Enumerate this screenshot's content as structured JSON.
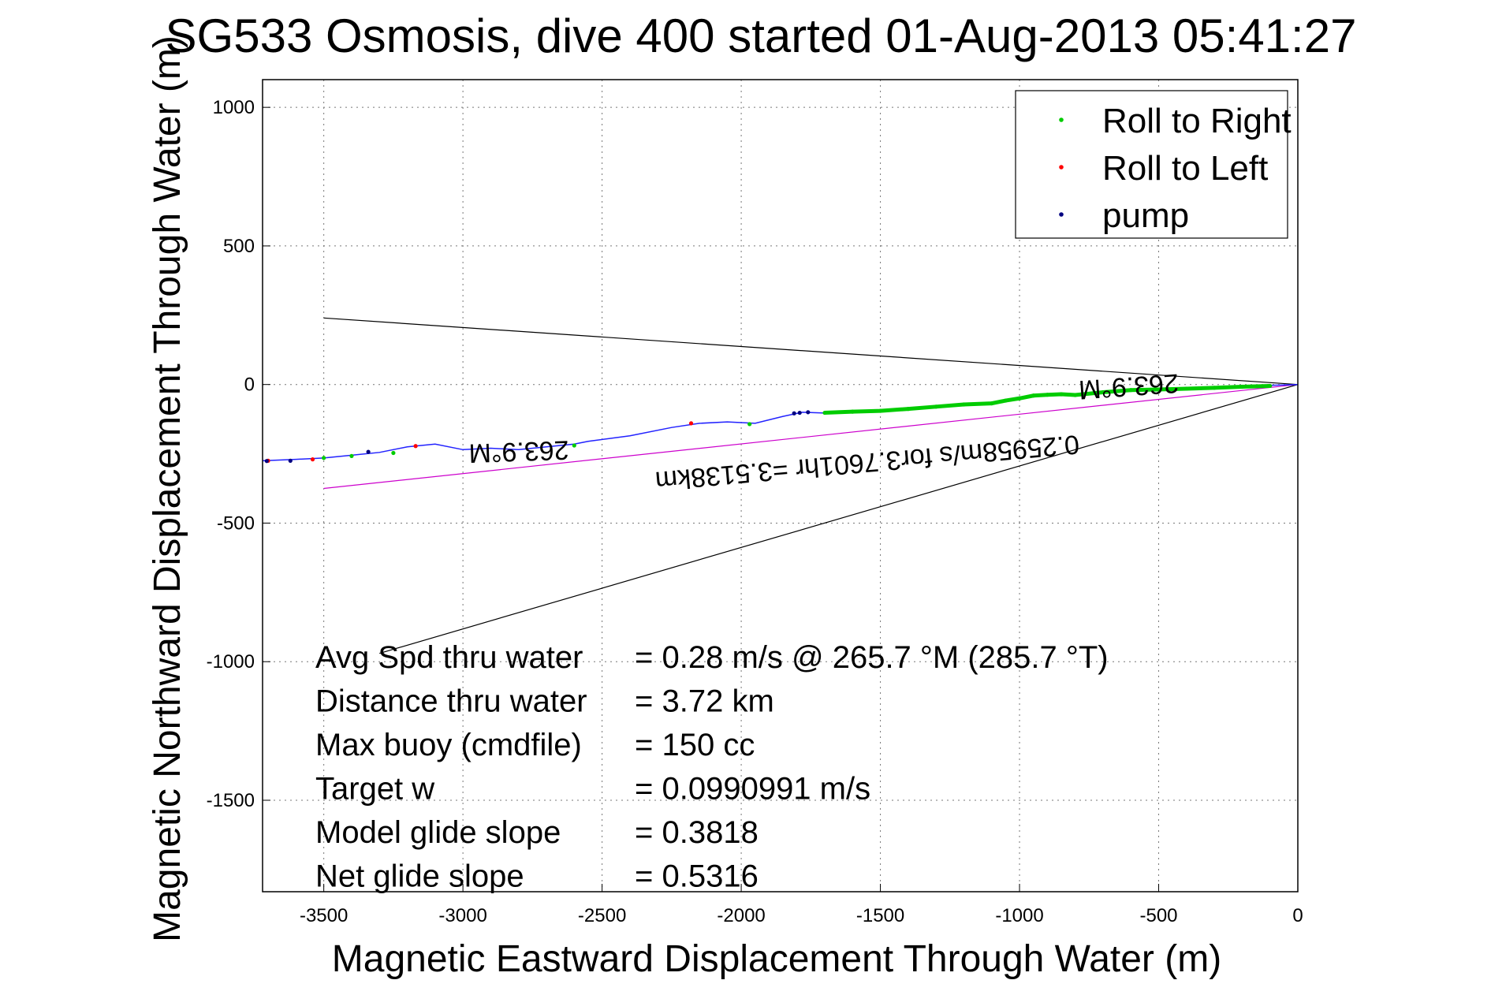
{
  "chart_data": {
    "type": "line",
    "title": "SG533 Osmosis, dive 400 started 01-Aug-2013 05:41:27",
    "xlabel": "Magnetic Eastward Displacement Through Water (m)",
    "ylabel": "Magnetic Northward Displacement Through Water (m)",
    "xlim": [
      -3720,
      0
    ],
    "ylim": [
      -1830,
      1100
    ],
    "xticks": [
      -3500,
      -3000,
      -2500,
      -2000,
      -1500,
      -1000,
      -500,
      0
    ],
    "yticks": [
      1000,
      500,
      0,
      -500,
      -1000,
      -1500
    ],
    "grid": true,
    "legend_position": "top-right",
    "legend": [
      {
        "label": "Roll to Right",
        "color": "#00cc00"
      },
      {
        "label": "Roll to Left",
        "color": "#ff0000"
      },
      {
        "label": "pump",
        "color": "#000080"
      }
    ],
    "series": [
      {
        "type": "track",
        "color": "#2222ff",
        "x": [
          0,
          -100,
          -300,
          -500,
          -700,
          -800,
          -900,
          -1000,
          -1100,
          -1200,
          -1400,
          -1600,
          -1700,
          -1780,
          -1850,
          -1950,
          -2050,
          -2150,
          -2250,
          -2400,
          -2550,
          -2600,
          -2700,
          -2800,
          -2900,
          -3000,
          -3100,
          -3200,
          -3300,
          -3400,
          -3500,
          -3600,
          -3720
        ],
        "y": [
          0,
          -3,
          -12,
          -18,
          -30,
          -40,
          -35,
          -45,
          -65,
          -72,
          -88,
          -100,
          -103,
          -100,
          -115,
          -140,
          -135,
          -140,
          -155,
          -185,
          -205,
          -215,
          -225,
          -235,
          -230,
          -235,
          -215,
          -225,
          -245,
          -255,
          -265,
          -270,
          -275
        ]
      },
      {
        "name": "Roll to Right",
        "color": "#00cc00",
        "x": [
          -100,
          -200,
          -300,
          -400,
          -500,
          -600,
          -700,
          -800,
          -850,
          -900,
          -950,
          -1000,
          -1050,
          -1100,
          -1200,
          -1300,
          -1400,
          -1500,
          -1600,
          -1700,
          -1970,
          -2600,
          -3250,
          -3400,
          -3500
        ],
        "y": [
          -5,
          -8,
          -12,
          -15,
          -18,
          -20,
          -28,
          -38,
          -35,
          -37,
          -40,
          -50,
          -58,
          -68,
          -72,
          -80,
          -88,
          -95,
          -98,
          -102,
          -143,
          -220,
          -247,
          -258,
          -265
        ]
      },
      {
        "name": "Roll to Left",
        "color": "#ff0000",
        "x": [
          -2180,
          -3170,
          -3540,
          -3700
        ],
        "y": [
          -140,
          -222,
          -270,
          -275
        ]
      },
      {
        "name": "pump",
        "color": "#000080",
        "x": [
          -1760,
          -1790,
          -1810,
          -3340,
          -3620,
          -3705
        ],
        "y": [
          -100,
          -102,
          -104,
          -243,
          -275,
          -276
        ]
      }
    ],
    "reference_lines": [
      {
        "color": "#000000",
        "x": [
          0,
          -3500
        ],
        "y": [
          0,
          240
        ]
      },
      {
        "color": "#000000",
        "x": [
          0,
          -3300
        ],
        "y": [
          0,
          -970
        ]
      },
      {
        "color": "#cc00cc",
        "x": [
          0,
          -3500
        ],
        "y": [
          0,
          -375
        ]
      }
    ],
    "annotations": [
      {
        "text": "263.9°M",
        "x": -2800,
        "y": -210,
        "rotation": 178
      },
      {
        "text": "263.9°M",
        "x": -610,
        "y": 25,
        "rotation": 176
      },
      {
        "text": "0.25958m/s for3.7601hr =3.5138km",
        "x": -1550,
        "y": -250,
        "rotation": 175
      }
    ],
    "stats": [
      {
        "label": "Avg Spd thru water",
        "value": "=  0.28 m/s @ 265.7 °M (285.7 °T)"
      },
      {
        "label": "Distance thru water",
        "value": "=  3.72 km"
      },
      {
        "label": "Max buoy (cmdfile)",
        "value": "= 150 cc"
      },
      {
        "label": "Target w",
        "value": "= 0.0990991 m/s"
      },
      {
        "label": "Model glide slope",
        "value": "= 0.3818"
      },
      {
        "label": "Net glide slope",
        "value": "= 0.5316"
      }
    ]
  }
}
